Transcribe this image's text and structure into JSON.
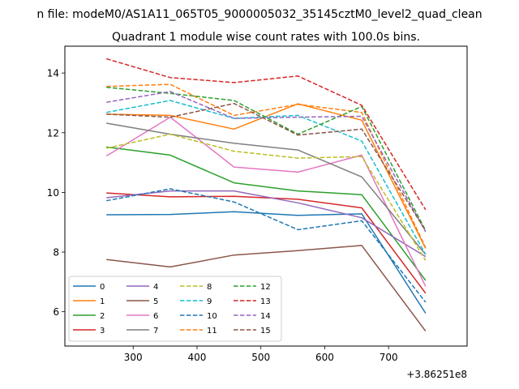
{
  "chart_data": {
    "type": "line",
    "suptitle": "n file: modeM0/AS1A11_065T05_9000005032_35145cztM0_level2_quad_clean",
    "title": "Quadrant 1 module wise count rates with 100.0s bins.",
    "xlabel": "",
    "ylabel": "",
    "x_offset_label": "+3.86251e8",
    "x": [
      258,
      358,
      458,
      558,
      658,
      758
    ],
    "xlim": [
      193,
      823
    ],
    "ylim": [
      4.85,
      14.9
    ],
    "xticks": [
      300,
      400,
      500,
      600,
      700
    ],
    "xtick_labels": [
      "300",
      "400",
      "500",
      "600",
      "700"
    ],
    "yticks": [
      6,
      8,
      10,
      12,
      14
    ],
    "ytick_labels": [
      "6",
      "8",
      "10",
      "12",
      "14"
    ],
    "grid": false,
    "legend_position": "lower-left",
    "legend_columns": 4,
    "series": [
      {
        "name": "0",
        "color": "#1f77b4",
        "dash": "solid",
        "values": [
          9.25,
          9.26,
          9.35,
          9.23,
          9.28,
          5.95
        ]
      },
      {
        "name": "1",
        "color": "#ff7f0e",
        "dash": "solid",
        "values": [
          12.62,
          12.58,
          12.12,
          12.97,
          12.42,
          8.12
        ]
      },
      {
        "name": "2",
        "color": "#2ca02c",
        "dash": "solid",
        "values": [
          11.52,
          11.25,
          10.32,
          10.05,
          9.92,
          7.05
        ]
      },
      {
        "name": "3",
        "color": "#d62728",
        "dash": "solid",
        "values": [
          9.98,
          9.85,
          9.87,
          9.77,
          9.48,
          6.62
        ]
      },
      {
        "name": "4",
        "color": "#9467bd",
        "dash": "solid",
        "values": [
          9.82,
          10.05,
          10.05,
          9.65,
          9.15,
          7.85
        ]
      },
      {
        "name": "5",
        "color": "#8c564b",
        "dash": "solid",
        "values": [
          7.75,
          7.5,
          7.9,
          8.05,
          8.22,
          5.35
        ]
      },
      {
        "name": "6",
        "color": "#e377c2",
        "dash": "solid",
        "values": [
          11.22,
          12.52,
          10.85,
          10.68,
          11.25,
          6.85
        ]
      },
      {
        "name": "7",
        "color": "#7f7f7f",
        "dash": "solid",
        "values": [
          12.32,
          11.95,
          11.65,
          11.42,
          10.52,
          7.92
        ]
      },
      {
        "name": "8",
        "color": "#bcbd22",
        "dash": "dashed",
        "values": [
          11.48,
          11.95,
          11.38,
          11.15,
          11.2,
          7.72
        ]
      },
      {
        "name": "9",
        "color": "#17becf",
        "dash": "dashed",
        "values": [
          12.68,
          13.08,
          12.48,
          12.58,
          11.72,
          7.92
        ]
      },
      {
        "name": "10",
        "color": "#1f77b4",
        "dash": "dashed",
        "values": [
          9.72,
          10.12,
          9.68,
          8.75,
          9.05,
          6.32
        ]
      },
      {
        "name": "11",
        "color": "#ff7f0e",
        "dash": "dashed",
        "values": [
          13.55,
          13.62,
          12.58,
          12.95,
          12.68,
          8.15
        ]
      },
      {
        "name": "12",
        "color": "#2ca02c",
        "dash": "dashed",
        "values": [
          13.52,
          13.32,
          13.08,
          11.95,
          12.88,
          8.72
        ]
      },
      {
        "name": "13",
        "color": "#d62728",
        "dash": "dashed",
        "values": [
          14.48,
          13.85,
          13.68,
          13.9,
          12.92,
          9.42
        ]
      },
      {
        "name": "14",
        "color": "#9467bd",
        "dash": "dashed",
        "values": [
          13.02,
          13.38,
          12.48,
          12.52,
          12.55,
          8.68
        ]
      },
      {
        "name": "15",
        "color": "#8c564b",
        "dash": "dashed",
        "values": [
          12.62,
          12.52,
          12.98,
          11.92,
          12.12,
          8.72
        ]
      }
    ]
  }
}
